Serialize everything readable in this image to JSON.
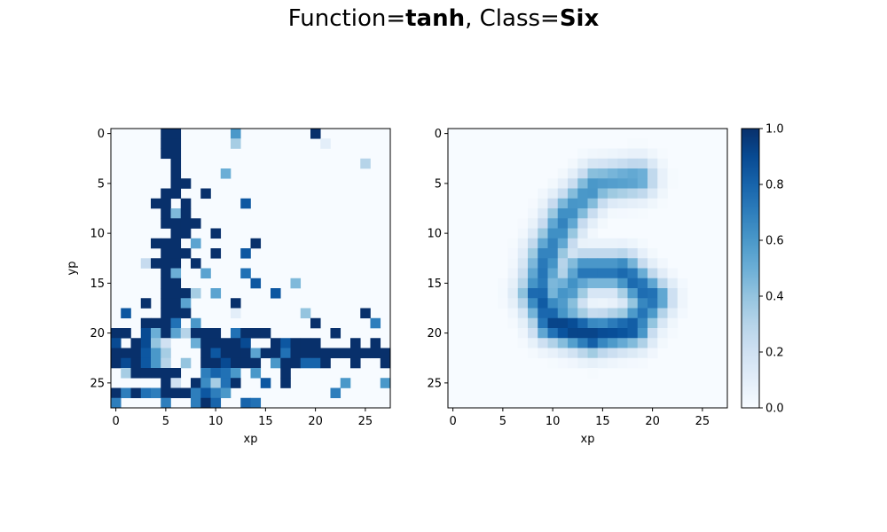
{
  "title": {
    "prefix": "Function=",
    "function": "tanh",
    "separator": ", Class=",
    "class": "Six"
  },
  "chart_data": [
    {
      "type": "heatmap",
      "panel": "left",
      "colormap": "Blues",
      "vmin": 0,
      "vmax": 1,
      "rows": 28,
      "cols": 28,
      "xlabel": "xp",
      "ylabel": "yp",
      "xticks": [
        0,
        5,
        10,
        15,
        20,
        25
      ],
      "yticks": [
        0,
        5,
        10,
        15,
        20,
        25
      ],
      "cells": [
        [
          0,
          5,
          1
        ],
        [
          0,
          6,
          1
        ],
        [
          0,
          12,
          0.6
        ],
        [
          0,
          20,
          1
        ],
        [
          1,
          5,
          1
        ],
        [
          1,
          6,
          1
        ],
        [
          1,
          12,
          0.35
        ],
        [
          1,
          21,
          0.1
        ],
        [
          2,
          5,
          1
        ],
        [
          2,
          6,
          1
        ],
        [
          3,
          6,
          1
        ],
        [
          3,
          25,
          0.3
        ],
        [
          4,
          6,
          1
        ],
        [
          4,
          11,
          0.5
        ],
        [
          5,
          6,
          1
        ],
        [
          5,
          7,
          1
        ],
        [
          6,
          5,
          1
        ],
        [
          6,
          6,
          1
        ],
        [
          6,
          9,
          1
        ],
        [
          7,
          4,
          1
        ],
        [
          7,
          5,
          1
        ],
        [
          7,
          7,
          1
        ],
        [
          7,
          13,
          0.85
        ],
        [
          8,
          5,
          1
        ],
        [
          8,
          6,
          0.45
        ],
        [
          8,
          7,
          1
        ],
        [
          9,
          5,
          1
        ],
        [
          9,
          6,
          1
        ],
        [
          9,
          7,
          1
        ],
        [
          9,
          8,
          1
        ],
        [
          10,
          6,
          1
        ],
        [
          10,
          7,
          1
        ],
        [
          10,
          10,
          1
        ],
        [
          11,
          4,
          1
        ],
        [
          11,
          5,
          1
        ],
        [
          11,
          6,
          1
        ],
        [
          11,
          8,
          0.55
        ],
        [
          11,
          14,
          1
        ],
        [
          12,
          5,
          1
        ],
        [
          12,
          6,
          1
        ],
        [
          12,
          7,
          1
        ],
        [
          12,
          10,
          1
        ],
        [
          12,
          13,
          0.85
        ],
        [
          13,
          3,
          0.25
        ],
        [
          13,
          4,
          1
        ],
        [
          13,
          5,
          1
        ],
        [
          13,
          6,
          1
        ],
        [
          13,
          8,
          1
        ],
        [
          14,
          5,
          1
        ],
        [
          14,
          6,
          0.5
        ],
        [
          14,
          9,
          0.55
        ],
        [
          14,
          13,
          0.75
        ],
        [
          15,
          5,
          1
        ],
        [
          15,
          6,
          1
        ],
        [
          15,
          14,
          0.85
        ],
        [
          15,
          18,
          0.45
        ],
        [
          16,
          5,
          1
        ],
        [
          16,
          6,
          1
        ],
        [
          16,
          7,
          1
        ],
        [
          16,
          8,
          0.35
        ],
        [
          16,
          10,
          0.55
        ],
        [
          16,
          16,
          0.85
        ],
        [
          17,
          3,
          1
        ],
        [
          17,
          5,
          1
        ],
        [
          17,
          6,
          1
        ],
        [
          17,
          7,
          0.55
        ],
        [
          17,
          12,
          1
        ],
        [
          18,
          1,
          0.85
        ],
        [
          18,
          5,
          1
        ],
        [
          18,
          6,
          1
        ],
        [
          18,
          7,
          1
        ],
        [
          18,
          12,
          0.1
        ],
        [
          18,
          19,
          0.4
        ],
        [
          18,
          25,
          1
        ],
        [
          19,
          3,
          1
        ],
        [
          19,
          4,
          1
        ],
        [
          19,
          5,
          1
        ],
        [
          19,
          6,
          0.75
        ],
        [
          19,
          8,
          0.6
        ],
        [
          19,
          20,
          1
        ],
        [
          19,
          26,
          0.7
        ],
        [
          20,
          0,
          1
        ],
        [
          20,
          1,
          1
        ],
        [
          20,
          3,
          0.9
        ],
        [
          20,
          4,
          0.5
        ],
        [
          20,
          5,
          1
        ],
        [
          20,
          6,
          0.55
        ],
        [
          20,
          7,
          0.3
        ],
        [
          20,
          8,
          1
        ],
        [
          20,
          9,
          1
        ],
        [
          20,
          10,
          1
        ],
        [
          20,
          12,
          0.75
        ],
        [
          20,
          13,
          1
        ],
        [
          20,
          14,
          1
        ],
        [
          20,
          15,
          1
        ],
        [
          20,
          22,
          1
        ],
        [
          21,
          0,
          0.9
        ],
        [
          21,
          2,
          1
        ],
        [
          21,
          3,
          0.9
        ],
        [
          21,
          4,
          0.4
        ],
        [
          21,
          5,
          0.2
        ],
        [
          21,
          8,
          0.5
        ],
        [
          21,
          9,
          1
        ],
        [
          21,
          10,
          1
        ],
        [
          21,
          11,
          1
        ],
        [
          21,
          12,
          1
        ],
        [
          21,
          13,
          0.9
        ],
        [
          21,
          16,
          1
        ],
        [
          21,
          17,
          0.85
        ],
        [
          21,
          18,
          1
        ],
        [
          21,
          19,
          1
        ],
        [
          21,
          20,
          1
        ],
        [
          21,
          24,
          1
        ],
        [
          21,
          26,
          1
        ],
        [
          22,
          0,
          1
        ],
        [
          22,
          1,
          1
        ],
        [
          22,
          2,
          1
        ],
        [
          22,
          3,
          0.85
        ],
        [
          22,
          4,
          0.6
        ],
        [
          22,
          5,
          0.35
        ],
        [
          22,
          9,
          1
        ],
        [
          22,
          10,
          0.85
        ],
        [
          22,
          11,
          1
        ],
        [
          22,
          12,
          1
        ],
        [
          22,
          13,
          1
        ],
        [
          22,
          14,
          0.55
        ],
        [
          22,
          15,
          1
        ],
        [
          22,
          16,
          1
        ],
        [
          22,
          17,
          0.75
        ],
        [
          22,
          18,
          1
        ],
        [
          22,
          19,
          1
        ],
        [
          22,
          20,
          1
        ],
        [
          22,
          21,
          1
        ],
        [
          22,
          22,
          1
        ],
        [
          22,
          23,
          1
        ],
        [
          22,
          24,
          1
        ],
        [
          22,
          25,
          1
        ],
        [
          22,
          26,
          1
        ],
        [
          22,
          27,
          1
        ],
        [
          23,
          0,
          1
        ],
        [
          23,
          1,
          0.9
        ],
        [
          23,
          2,
          1
        ],
        [
          23,
          3,
          0.85
        ],
        [
          23,
          4,
          0.6
        ],
        [
          23,
          5,
          0.3
        ],
        [
          23,
          7,
          0.4
        ],
        [
          23,
          9,
          1
        ],
        [
          23,
          10,
          1
        ],
        [
          23,
          11,
          0.9
        ],
        [
          23,
          12,
          1
        ],
        [
          23,
          13,
          1
        ],
        [
          23,
          14,
          1
        ],
        [
          23,
          16,
          0.6
        ],
        [
          23,
          17,
          1
        ],
        [
          23,
          18,
          1
        ],
        [
          23,
          19,
          0.8
        ],
        [
          23,
          20,
          0.8
        ],
        [
          23,
          21,
          1
        ],
        [
          23,
          24,
          1
        ],
        [
          23,
          27,
          1
        ],
        [
          24,
          1,
          0.35
        ],
        [
          24,
          2,
          1
        ],
        [
          24,
          3,
          1
        ],
        [
          24,
          4,
          1
        ],
        [
          24,
          5,
          1
        ],
        [
          24,
          6,
          1
        ],
        [
          24,
          9,
          0.7
        ],
        [
          24,
          10,
          0.8
        ],
        [
          24,
          11,
          0.75
        ],
        [
          24,
          12,
          0.6
        ],
        [
          24,
          14,
          0.6
        ],
        [
          24,
          17,
          1
        ],
        [
          25,
          5,
          1
        ],
        [
          25,
          6,
          0.2
        ],
        [
          25,
          8,
          1
        ],
        [
          25,
          9,
          0.65
        ],
        [
          25,
          10,
          0.35
        ],
        [
          25,
          11,
          0.75
        ],
        [
          25,
          12,
          1
        ],
        [
          25,
          15,
          0.85
        ],
        [
          25,
          17,
          1
        ],
        [
          25,
          23,
          0.6
        ],
        [
          25,
          27,
          0.6
        ],
        [
          26,
          0,
          1
        ],
        [
          26,
          1,
          0.7
        ],
        [
          26,
          2,
          1
        ],
        [
          26,
          3,
          0.75
        ],
        [
          26,
          4,
          0.7
        ],
        [
          26,
          5,
          1
        ],
        [
          26,
          6,
          1
        ],
        [
          26,
          7,
          1
        ],
        [
          26,
          8,
          0.7
        ],
        [
          26,
          9,
          0.85
        ],
        [
          26,
          10,
          0.7
        ],
        [
          26,
          11,
          0.6
        ],
        [
          26,
          22,
          0.7
        ],
        [
          27,
          0,
          0.7
        ],
        [
          27,
          5,
          0.7
        ],
        [
          27,
          8,
          0.7
        ],
        [
          27,
          9,
          1
        ],
        [
          27,
          10,
          0.8
        ],
        [
          27,
          13,
          0.8
        ],
        [
          27,
          14,
          0.75
        ]
      ]
    },
    {
      "type": "heatmap",
      "panel": "right",
      "colormap": "Blues",
      "vmin": 0,
      "vmax": 1,
      "rows": 28,
      "cols": 28,
      "xlabel": "xp",
      "ylabel": "",
      "xticks": [
        0,
        5,
        10,
        15,
        20,
        25
      ],
      "yticks": [
        0,
        5,
        10,
        15,
        20,
        25
      ],
      "shape_description_values": {
        "stroke_peak": 0.92,
        "stroke_typical": 0.62,
        "halo": 0.15
      }
    }
  ],
  "colorbar": {
    "min": 0,
    "max": 1,
    "ticks": [
      "0.0",
      "0.2",
      "0.4",
      "0.6",
      "0.8",
      "1.0"
    ]
  }
}
